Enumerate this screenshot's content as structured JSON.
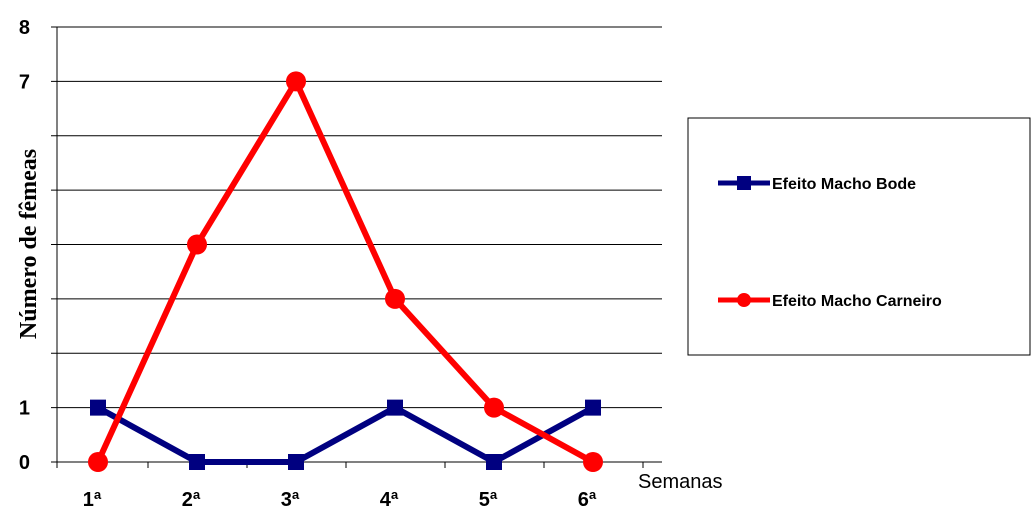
{
  "chart_data": {
    "type": "line",
    "title": "",
    "xlabel": "Semanas",
    "ylabel": "Número de fêmeas",
    "categories": [
      "1ª",
      "2ª",
      "3ª",
      "4ª",
      "5ª",
      "6ª"
    ],
    "ylim": [
      0,
      8
    ],
    "ytick_labels": [
      {
        "value": 0,
        "label": "0"
      },
      {
        "value": 1,
        "label": "1"
      },
      {
        "value": 7,
        "label": "7"
      },
      {
        "value": 8,
        "label": "8"
      }
    ],
    "grid": true,
    "legend_position": "right",
    "series": [
      {
        "name": "Efeito Macho Bode",
        "values": [
          1,
          0,
          0,
          1,
          0,
          1
        ],
        "color": "#000080",
        "marker": "square"
      },
      {
        "name": "Efeito Macho Carneiro",
        "values": [
          0,
          4,
          7,
          3,
          1,
          0
        ],
        "color": "#ff0000",
        "marker": "circle"
      }
    ]
  }
}
